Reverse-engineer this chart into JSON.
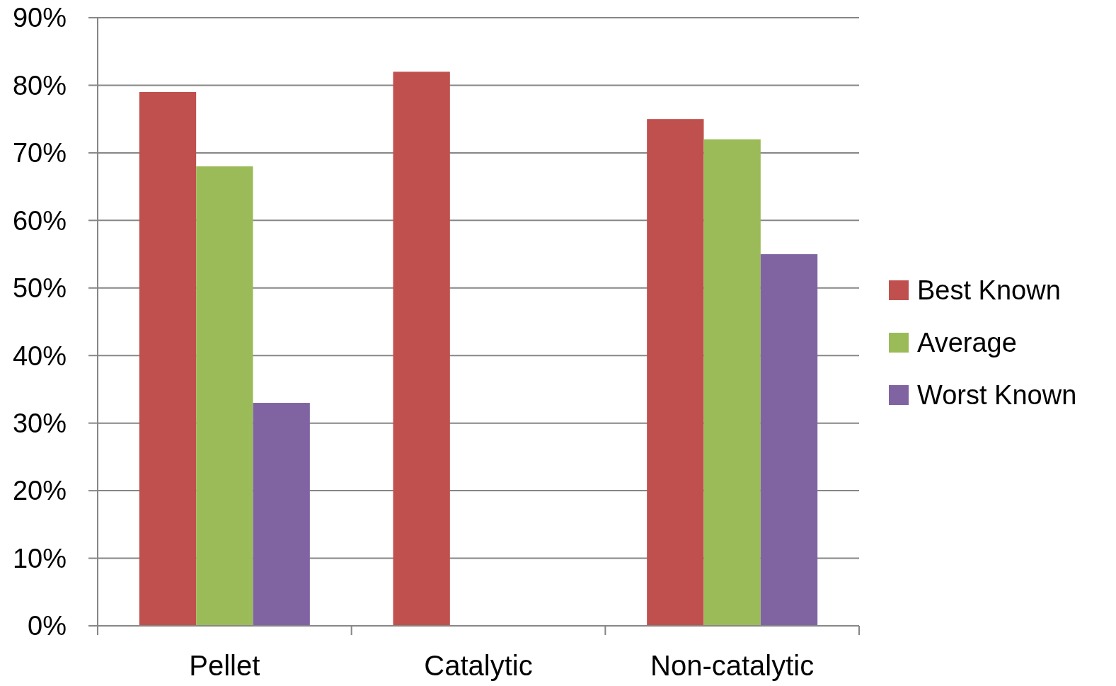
{
  "chart_data": {
    "type": "bar",
    "categories": [
      "Pellet",
      "Catalytic",
      "Non-catalytic"
    ],
    "series": [
      {
        "name": "Best Known",
        "color": "#c0504d",
        "values": [
          79,
          82,
          75
        ]
      },
      {
        "name": "Average",
        "color": "#9bbb59",
        "values": [
          68,
          null,
          72
        ]
      },
      {
        "name": "Worst Known",
        "color": "#8064a2",
        "values": [
          33,
          null,
          55
        ]
      }
    ],
    "ylim": [
      0,
      90
    ],
    "yticks": [
      {
        "value": 0,
        "label": "0%"
      },
      {
        "value": 10,
        "label": "10%"
      },
      {
        "value": 20,
        "label": "20%"
      },
      {
        "value": 30,
        "label": "30%"
      },
      {
        "value": 40,
        "label": "40%"
      },
      {
        "value": 50,
        "label": "50%"
      },
      {
        "value": 60,
        "label": "60%"
      },
      {
        "value": 70,
        "label": "70%"
      },
      {
        "value": 80,
        "label": "80%"
      },
      {
        "value": 90,
        "label": "90%"
      }
    ],
    "grid": "y",
    "legend": "right"
  }
}
